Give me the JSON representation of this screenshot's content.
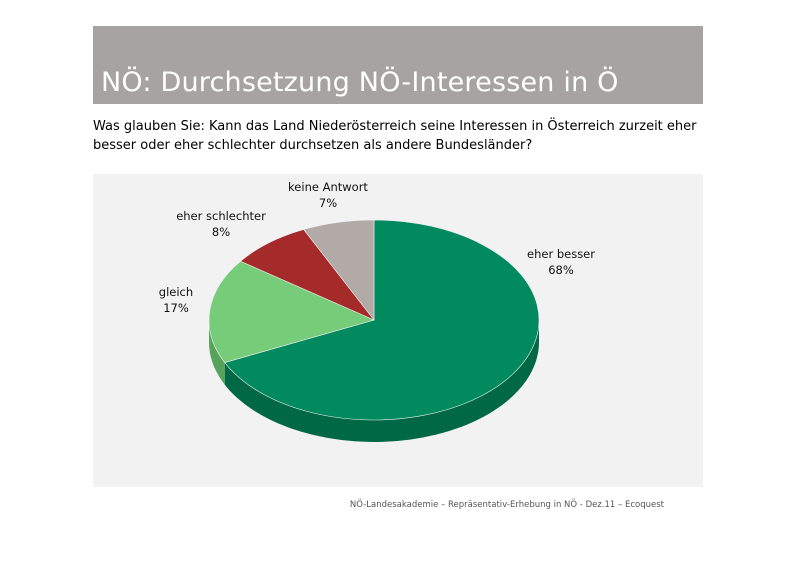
{
  "slide": {
    "title": "NÖ: Durchsetzung NÖ-Interessen in Ö",
    "question_lines": [
      "Was glauben Sie: Kann das Land Niederösterreich seine Interessen in Österreich zurzeit eher",
      "besser oder eher schlechter durchsetzen als andere Bundesländer?"
    ],
    "footer": "NÖ-Landesakademie – Repräsentativ-Erhebung in NÖ - Dez.11 – Ecoquest"
  },
  "colors": {
    "title_bar": "#a6a3a2",
    "chart_background": "#f2f2f2"
  },
  "chart_data": {
    "type": "pie",
    "title": "",
    "slices": [
      {
        "label": "eher besser",
        "value": 68,
        "value_label": "68%",
        "color": "#008a5e",
        "side_color": "#006844"
      },
      {
        "label": "gleich",
        "value": 17,
        "value_label": "17%",
        "color": "#77cc7a",
        "side_color": "#58a35b"
      },
      {
        "label": "eher schlechter",
        "value": 8,
        "value_label": "8%",
        "color": "#a52a2a",
        "side_color": "#7d1d1d"
      },
      {
        "label": "keine Antwort",
        "value": 7,
        "value_label": "7%",
        "color": "#b1aaa6",
        "side_color": "#8b8581"
      }
    ],
    "start_angle_deg": 0,
    "direction": "clockwise",
    "three_d": true
  }
}
